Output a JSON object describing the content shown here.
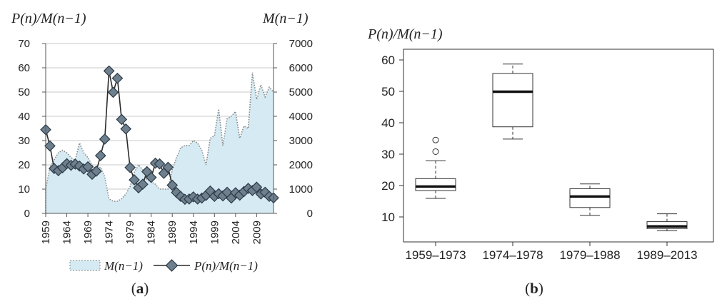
{
  "chart_data": [
    {
      "type": "area+line",
      "panel_label": "a",
      "left_axis_label": "P(n)/M(n−1)",
      "right_axis_label": "M(n−1)",
      "y_left_lim": [
        0,
        70
      ],
      "y_left_ticks": [
        "0",
        "10",
        "20",
        "30",
        "40",
        "50",
        "60",
        "70"
      ],
      "y_right_lim": [
        0,
        7000
      ],
      "y_right_ticks": [
        "0",
        "1000",
        "2000",
        "3000",
        "4000",
        "5000",
        "6000",
        "7000"
      ],
      "x_ticks": [
        "1959",
        "1964",
        "1969",
        "1974",
        "1979",
        "1984",
        "1989",
        "1994",
        "1999",
        "2004",
        "2009"
      ],
      "x_lim": [
        1959,
        2013
      ],
      "grid": "horizontal",
      "series": [
        {
          "name": "M(n−1)",
          "style": "area-dotted",
          "axis": "right",
          "x": [
            1959,
            1960,
            1961,
            1962,
            1963,
            1964,
            1965,
            1966,
            1967,
            1968,
            1969,
            1970,
            1971,
            1972,
            1973,
            1974,
            1975,
            1976,
            1977,
            1978,
            1979,
            1980,
            1981,
            1982,
            1983,
            1984,
            1985,
            1986,
            1987,
            1988,
            1989,
            1990,
            1991,
            1992,
            1993,
            1994,
            1995,
            1996,
            1997,
            1998,
            1999,
            2000,
            2001,
            2002,
            2003,
            2004,
            2005,
            2006,
            2007,
            2008,
            2009,
            2010,
            2011,
            2012,
            2013
          ],
          "values": [
            1000,
            1900,
            2200,
            2500,
            2600,
            2500,
            2300,
            2200,
            2900,
            2500,
            2300,
            2000,
            1800,
            1900,
            1500,
            600,
            500,
            500,
            600,
            800,
            1100,
            1700,
            2000,
            1800,
            1400,
            1300,
            1200,
            1000,
            1000,
            1000,
            1800,
            2300,
            2700,
            2800,
            2800,
            3000,
            2900,
            2600,
            2000,
            3100,
            3200,
            4300,
            2800,
            3900,
            4000,
            4200,
            3100,
            3600,
            3500,
            5800,
            4700,
            5300,
            4800,
            5200,
            5000
          ]
        },
        {
          "name": "P(n)/M(n−1)",
          "style": "line-diamond",
          "axis": "left",
          "x": [
            1959,
            1960,
            1961,
            1962,
            1963,
            1964,
            1965,
            1966,
            1967,
            1968,
            1969,
            1970,
            1971,
            1972,
            1973,
            1974,
            1975,
            1976,
            1977,
            1978,
            1979,
            1980,
            1981,
            1982,
            1983,
            1984,
            1985,
            1986,
            1987,
            1988,
            1989,
            1990,
            1991,
            1992,
            1993,
            1994,
            1995,
            1996,
            1997,
            1998,
            1999,
            2000,
            2001,
            2002,
            2003,
            2004,
            2005,
            2006,
            2007,
            2008,
            2009,
            2010,
            2011,
            2012,
            2013
          ],
          "values": [
            34.5,
            27.8,
            18.5,
            17.6,
            18.8,
            20.5,
            19.8,
            20.3,
            19.5,
            18.3,
            19.2,
            16.1,
            17.4,
            23.8,
            30.6,
            58.7,
            49.9,
            55.7,
            38.7,
            34.8,
            18.9,
            13.8,
            10.5,
            12.0,
            17.2,
            14.8,
            20.7,
            20.4,
            16.5,
            19.0,
            11.6,
            8.6,
            7.0,
            5.8,
            5.9,
            6.8,
            5.9,
            6.3,
            7.4,
            9.2,
            7.0,
            8.1,
            7.2,
            8.7,
            6.3,
            8.5,
            7.5,
            9.0,
            10.3,
            9.4,
            10.8,
            8.0,
            8.7,
            7.0,
            6.4
          ]
        }
      ],
      "legend": [
        "M(n−1)",
        "P(n)/M(n−1)"
      ],
      "legend_position": "bottom"
    },
    {
      "type": "box",
      "panel_label": "b",
      "ylabel": "P(n)/M(n−1)",
      "ylim": [
        5,
        60
      ],
      "y_ticks": [
        "10",
        "20",
        "30",
        "40",
        "50",
        "60"
      ],
      "categories": [
        "1959–1973",
        "1974–1978",
        "1979–1988",
        "1989–2013"
      ],
      "boxes": [
        {
          "whisker_low": 15.9,
          "q1": 18.4,
          "median": 19.7,
          "q3": 22.2,
          "whisker_high": 27.9,
          "outliers": [
            30.8,
            34.5
          ]
        },
        {
          "whisker_low": 34.8,
          "q1": 38.7,
          "median": 49.9,
          "q3": 55.7,
          "whisker_high": 58.7,
          "outliers": []
        },
        {
          "whisker_low": 10.5,
          "q1": 13.0,
          "median": 16.5,
          "q3": 19.0,
          "whisker_high": 20.5,
          "outliers": []
        },
        {
          "whisker_low": 5.6,
          "q1": 6.3,
          "median": 7.0,
          "q3": 8.5,
          "whisker_high": 11.0,
          "outliers": []
        }
      ]
    }
  ],
  "captions": {
    "a_open": "(",
    "a_letter": "a",
    "a_close": ")",
    "b_open": "(",
    "b_letter": "b",
    "b_close": ")"
  },
  "colors": {
    "area_fill": "#d5eaf2",
    "area_edge": "#888888",
    "marker_fill": "#6e7f8e",
    "marker_edge": "#2c3a46",
    "line": "#2b2b2b",
    "grid": "#c8c8c8"
  }
}
